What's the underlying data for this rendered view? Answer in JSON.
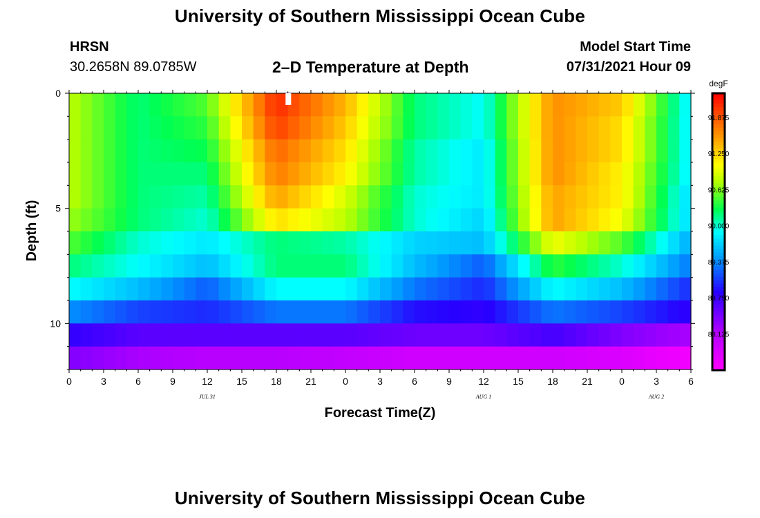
{
  "header": {
    "title": "University of Southern Mississippi Ocean Cube",
    "station_code": "HRSN",
    "station_coords": "30.2658N  89.0785W",
    "plot_title": "2–D Temperature at Depth",
    "model_start_label": "Model Start Time",
    "model_start_value": "07/31/2021 Hour 09"
  },
  "footer": {
    "title": "University of Southern Mississippi Ocean Cube"
  },
  "chart_data": {
    "type": "heatmap",
    "title": "2–D Temperature at Depth",
    "xlabel": "Forecast Time(Z)",
    "ylabel": "Depth (ft)",
    "units": "degF",
    "x_range_hours": [
      0,
      54
    ],
    "y_range_ft": [
      0,
      12
    ],
    "x_ticks": [
      {
        "h": 0,
        "label": "0"
      },
      {
        "h": 3,
        "label": "3"
      },
      {
        "h": 6,
        "label": "6"
      },
      {
        "h": 9,
        "label": "9"
      },
      {
        "h": 12,
        "label": "12"
      },
      {
        "h": 15,
        "label": "15"
      },
      {
        "h": 18,
        "label": "18"
      },
      {
        "h": 21,
        "label": "21"
      },
      {
        "h": 24,
        "label": "0"
      },
      {
        "h": 27,
        "label": "3"
      },
      {
        "h": 30,
        "label": "6"
      },
      {
        "h": 33,
        "label": "9"
      },
      {
        "h": 36,
        "label": "12"
      },
      {
        "h": 39,
        "label": "15"
      },
      {
        "h": 42,
        "label": "18"
      },
      {
        "h": 45,
        "label": "21"
      },
      {
        "h": 48,
        "label": "0"
      },
      {
        "h": 51,
        "label": "3"
      },
      {
        "h": 54,
        "label": "6"
      }
    ],
    "y_ticks": [
      {
        "ft": 0,
        "label": "0"
      },
      {
        "ft": 5,
        "label": "5"
      },
      {
        "ft": 10,
        "label": "10"
      }
    ],
    "date_labels": [
      {
        "h": 12,
        "label": "JUL 31"
      },
      {
        "h": 36,
        "label": "AUG 1"
      },
      {
        "h": 51,
        "label": "AUG 2"
      }
    ],
    "colorbar": {
      "min": 87.5,
      "max": 92.3,
      "ticks": [
        "91.875",
        "91.250",
        "90.625",
        "90.000",
        "89.375",
        "88.750",
        "88.125"
      ],
      "tick_values": [
        91.875,
        91.25,
        90.625,
        90.0,
        89.375,
        88.75,
        88.125
      ]
    },
    "depth_layers_ft": [
      0.5,
      1.5,
      2.5,
      3.5,
      4.5,
      5.5,
      6.5,
      7.5,
      8.5,
      9.5,
      10.5,
      11.5
    ],
    "layer_top_ft": [
      0,
      1,
      2,
      3,
      4,
      5,
      6,
      7,
      8,
      9,
      10,
      11
    ],
    "layer_bottom_ft": [
      1,
      2,
      3,
      4,
      5,
      6,
      7,
      8,
      9,
      10,
      11,
      12
    ],
    "time_hours": [
      0,
      6,
      12,
      18,
      24,
      30,
      36,
      42,
      48,
      54
    ],
    "temperature_degF": [
      [
        90.8,
        90.2,
        90.5,
        92.1,
        91.4,
        90.2,
        89.9,
        91.6,
        91.3,
        89.8
      ],
      [
        90.8,
        90.2,
        90.4,
        92.0,
        91.3,
        90.2,
        89.9,
        91.6,
        91.2,
        89.8
      ],
      [
        90.8,
        90.2,
        90.3,
        91.8,
        91.2,
        90.1,
        89.8,
        91.6,
        91.2,
        89.8
      ],
      [
        90.8,
        90.2,
        90.2,
        91.7,
        91.1,
        90.1,
        89.8,
        91.6,
        91.1,
        89.8
      ],
      [
        90.8,
        90.2,
        90.1,
        91.5,
        90.9,
        90.0,
        89.8,
        91.5,
        91.1,
        89.7
      ],
      [
        90.7,
        90.2,
        90.0,
        91.2,
        90.8,
        90.0,
        89.7,
        91.5,
        91.0,
        89.7
      ],
      [
        90.5,
        90.0,
        89.8,
        90.2,
        90.1,
        89.7,
        89.6,
        91.0,
        90.5,
        89.5
      ],
      [
        90.2,
        89.9,
        89.6,
        90.2,
        90.2,
        89.6,
        89.2,
        90.4,
        90.0,
        89.3
      ],
      [
        89.9,
        89.6,
        89.2,
        89.9,
        89.9,
        89.3,
        89.0,
        89.9,
        89.6,
        89.0
      ],
      [
        89.4,
        89.1,
        89.0,
        89.3,
        89.3,
        88.9,
        88.8,
        89.3,
        89.1,
        88.8
      ],
      [
        88.8,
        88.6,
        88.6,
        88.6,
        88.6,
        88.5,
        88.5,
        88.7,
        88.4,
        88.2
      ],
      [
        88.4,
        88.2,
        88.1,
        88.1,
        88.0,
        87.9,
        87.9,
        87.9,
        87.8,
        87.6
      ]
    ]
  }
}
